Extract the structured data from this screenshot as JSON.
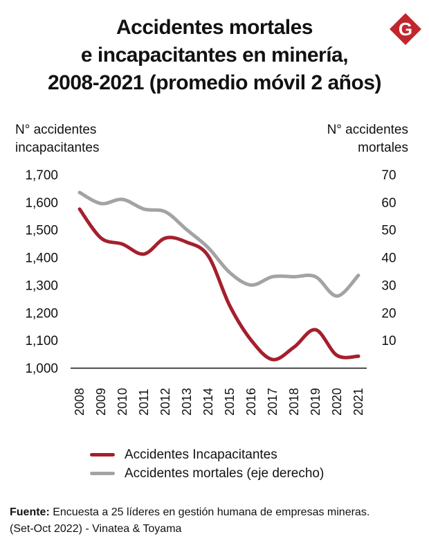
{
  "title": {
    "line1": "Accidentes mortales",
    "line2": "e incapacitantes en minería,",
    "line3": "2008-2021 (promedio móvil 2 años)"
  },
  "logo": {
    "letter": "G",
    "color": "#c0272d"
  },
  "colors": {
    "incap": "#a51f2d",
    "mort": "#a3a3a3",
    "axis": "#111111"
  },
  "chart_data": {
    "type": "line",
    "title": "Accidentes mortales e incapacitantes en minería, 2008-2021 (promedio móvil 2 años)",
    "categories": [
      "2008",
      "2009",
      "2010",
      "2011",
      "2012",
      "2013",
      "2014",
      "2015",
      "2016",
      "2017",
      "2018",
      "2019",
      "2020",
      "2021"
    ],
    "ylabel_left": "N° accidentes incapacitantes",
    "ylabel_right": "N° accidentes mortales",
    "ylim_left": [
      1000,
      1700
    ],
    "ylim_right": [
      0,
      70
    ],
    "yticks_left": [
      "1,700",
      "1,600",
      "1,500",
      "1,400",
      "1,300",
      "1,200",
      "1,100",
      "1,000"
    ],
    "yticks_right": [
      "70",
      "60",
      "50",
      "40",
      "30",
      "20",
      "10"
    ],
    "grid": false,
    "legend_position": "bottom",
    "series": [
      {
        "name": "Accidentes Incapacitantes",
        "axis": "left",
        "values": [
          1575,
          1470,
          1448,
          1412,
          1470,
          1455,
          1405,
          1225,
          1100,
          1030,
          1075,
          1138,
          1045,
          1042
        ]
      },
      {
        "name": "Accidentes mortales (eje derecho)",
        "axis": "right",
        "values": [
          63.5,
          59.5,
          61,
          57.5,
          56.5,
          50,
          43.5,
          34.5,
          30,
          33,
          33,
          33,
          26,
          33.5
        ]
      }
    ]
  },
  "left_axis_title": {
    "line1": "N° accidentes",
    "line2": "incapacitantes"
  },
  "right_axis_title": {
    "line1": "N° accidentes",
    "line2": "mortales"
  },
  "source": {
    "label": "Fuente:",
    "text": " Encuesta a 25 líderes en gestión humana de empresas mineras.",
    "line2": "(Set-Oct 2022) - Vinatea & Toyama"
  }
}
